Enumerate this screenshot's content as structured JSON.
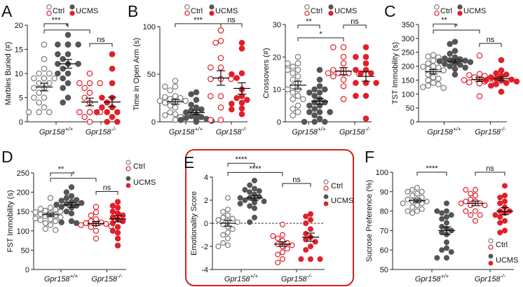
{
  "colors": {
    "wt": "#555555",
    "wt_open": "#7a7a7a",
    "ko": "#e0202a",
    "box": "#d42020"
  },
  "chart_data": [
    {
      "id": "A",
      "type": "scatter",
      "panel_label": "A",
      "ylabel": "Marbles Buried (#)",
      "ylim": [
        0,
        20
      ],
      "yticks": [
        0,
        5,
        10,
        15,
        20
      ],
      "xticks": [
        {
          "base": "Gpr158",
          "sup": "+/+"
        },
        {
          "base": "Gpr158",
          "sup": "-/-"
        }
      ],
      "legend": {
        "ctrl": "Ctrl",
        "ucms": "UCMS",
        "placement": "top"
      },
      "groups": [
        {
          "genotype": "Gpr158+/+",
          "condition": "Ctrl",
          "mean": 7.2,
          "sem": 0.8,
          "values": [
            16,
            13,
            11,
            10,
            10,
            9,
            9,
            9,
            9,
            8,
            8,
            7,
            7,
            6,
            5,
            5,
            4,
            3,
            2,
            2,
            2
          ]
        },
        {
          "genotype": "Gpr158+/+",
          "condition": "UCMS",
          "mean": 12.0,
          "sem": 0.9,
          "values": [
            18,
            16,
            16,
            16,
            16,
            16,
            16,
            14,
            14,
            13,
            12,
            12,
            12,
            11,
            10,
            10,
            9,
            8,
            7,
            5,
            4
          ]
        },
        {
          "genotype": "Gpr158-/-",
          "condition": "Ctrl",
          "mean": 4.1,
          "sem": 0.8,
          "values": [
            10,
            8,
            8,
            8,
            7,
            6,
            5,
            4,
            2,
            2,
            2,
            2,
            2,
            1,
            0
          ]
        },
        {
          "genotype": "Gpr158-/-",
          "condition": "UCMS",
          "mean": 4.1,
          "sem": 1.0,
          "values": [
            14,
            11,
            8,
            5,
            5,
            4,
            3,
            3,
            2,
            2,
            2,
            1,
            0,
            0
          ]
        }
      ],
      "significance": [
        {
          "from": 0,
          "to": 1,
          "label": "***",
          "y": 20.3
        },
        {
          "from": 0,
          "to": 2,
          "label": "*",
          "y": 19.0
        },
        {
          "from": 2,
          "to": 3,
          "label": "ns",
          "y": 16.2
        }
      ]
    },
    {
      "id": "B1",
      "type": "scatter",
      "panel_label": "B",
      "ylabel": "Time in Open Arm (s)",
      "ylim": [
        0,
        100
      ],
      "yticks": [
        0,
        50,
        100
      ],
      "xticks": [
        {
          "base": "Gpr158",
          "sup": "+/+"
        },
        {
          "base": "Gpr158",
          "sup": "-/-"
        }
      ],
      "legend": {
        "ctrl": "Ctrl",
        "ucms": "UCMS",
        "placement": "top"
      },
      "groups": [
        {
          "genotype": "Gpr158+/+",
          "condition": "Ctrl",
          "mean": 21,
          "sem": 2.5,
          "values": [
            43,
            37,
            37,
            33,
            27,
            26,
            25,
            24,
            22,
            22,
            21,
            20,
            17,
            15,
            10,
            8,
            7,
            7,
            5,
            2
          ]
        },
        {
          "genotype": "Gpr158+/+",
          "condition": "UCMS",
          "mean": 9.7,
          "sem": 2.2,
          "values": [
            31,
            29,
            23,
            18,
            15,
            13,
            12,
            10,
            8,
            6,
            5,
            4,
            3,
            3,
            2,
            2,
            1,
            1,
            0
          ]
        },
        {
          "genotype": "Gpr158-/-",
          "condition": "Ctrl",
          "mean": 46,
          "sem": 7.6,
          "values": [
            96,
            83,
            85,
            67,
            57,
            57,
            45,
            45,
            45,
            27,
            27,
            15,
            2,
            2
          ]
        },
        {
          "genotype": "Gpr158-/-",
          "condition": "UCMS",
          "mean": 35,
          "sem": 6,
          "values": [
            83,
            77,
            51,
            50,
            46,
            34,
            27,
            25,
            23,
            20,
            19,
            14,
            13,
            8
          ]
        }
      ],
      "significance": [
        {
          "from": 0,
          "to": 2,
          "label": "***",
          "y": 103
        },
        {
          "from": 2,
          "to": 3,
          "label": "ns",
          "y": 103
        }
      ]
    },
    {
      "id": "B2",
      "type": "scatter",
      "panel_label": "",
      "ylabel": "Crossovers (#)",
      "ylim": [
        0,
        30
      ],
      "yticks": [
        0,
        10,
        20,
        30
      ],
      "xticks": [
        {
          "base": "Gpr158",
          "sup": "+/+"
        },
        {
          "base": "Gpr158",
          "sup": "-/-"
        }
      ],
      "legend": {
        "ctrl": "Ctrl",
        "ucms": "UCMS",
        "placement": "top"
      },
      "groups": [
        {
          "genotype": "Gpr158+/+",
          "condition": "Ctrl",
          "mean": 11.3,
          "sem": 1.2,
          "values": [
            20,
            18,
            18,
            17,
            16,
            16,
            15,
            14,
            13,
            12,
            11,
            10,
            10,
            9,
            8,
            7,
            7,
            5,
            4,
            3,
            2
          ]
        },
        {
          "genotype": "Gpr158+/+",
          "condition": "UCMS",
          "mean": 6.3,
          "sem": 0.9,
          "values": [
            16,
            13,
            11,
            10,
            10,
            9,
            9,
            8,
            7,
            6,
            6,
            5,
            5,
            4,
            3,
            3,
            3,
            2,
            1,
            0,
            0,
            0
          ]
        },
        {
          "genotype": "Gpr158-/-",
          "condition": "Ctrl",
          "mean": 15.6,
          "sem": 1.1,
          "values": [
            23,
            23,
            20,
            18,
            16,
            16,
            15,
            15,
            15,
            15,
            15,
            14,
            13,
            11,
            7
          ]
        },
        {
          "genotype": "Gpr158-/-",
          "condition": "UCMS",
          "mean": 14.0,
          "sem": 1.5,
          "values": [
            23,
            20,
            20,
            18,
            16,
            16,
            15,
            15,
            12,
            12,
            12,
            12,
            8,
            8,
            1
          ]
        }
      ],
      "significance": [
        {
          "from": 0,
          "to": 1,
          "label": "**",
          "y": 29.8
        },
        {
          "from": 2,
          "to": 3,
          "label": "ns",
          "y": 29.8
        },
        {
          "from": 0,
          "to": 2,
          "label": "*",
          "y": 25.9
        }
      ]
    },
    {
      "id": "C",
      "type": "scatter",
      "panel_label": "C",
      "ylabel": "TST Immobility (s)",
      "ylim": [
        0,
        350
      ],
      "yticks": [
        0,
        50,
        100,
        150,
        200,
        250,
        300,
        350
      ],
      "xticks": [
        {
          "base": "Gpr158",
          "sup": "+/+"
        },
        {
          "base": "Gpr158",
          "sup": "-/-"
        }
      ],
      "legend": {
        "ctrl": "Ctrl",
        "ucms": "UCMS",
        "placement": "top"
      },
      "groups": [
        {
          "genotype": "Gpr158+/+",
          "condition": "Ctrl",
          "mean": 180,
          "sem": 8,
          "values": [
            240,
            235,
            232,
            220,
            210,
            200,
            198,
            195,
            190,
            185,
            180,
            170,
            160,
            155,
            150,
            140,
            135,
            130,
            125,
            122
          ]
        },
        {
          "genotype": "Gpr158+/+",
          "condition": "UCMS",
          "mean": 218,
          "sem": 6,
          "values": [
            288,
            280,
            255,
            245,
            232,
            228,
            225,
            222,
            220,
            218,
            215,
            212,
            210,
            208,
            205,
            200,
            195,
            190,
            170
          ]
        },
        {
          "genotype": "Gpr158-/-",
          "condition": "Ctrl",
          "mean": 152,
          "sem": 7,
          "values": [
            238,
            172,
            168,
            165,
            160,
            155,
            152,
            150,
            148,
            145,
            142,
            140,
            138,
            92
          ]
        },
        {
          "genotype": "Gpr158-/-",
          "condition": "UCMS",
          "mean": 155,
          "sem": 7,
          "values": [
            222,
            185,
            175,
            170,
            165,
            160,
            155,
            152,
            150,
            148,
            145,
            140,
            135,
            130,
            108
          ]
        }
      ],
      "significance": [
        {
          "from": 0,
          "to": 1,
          "label": "**",
          "y": 352
        },
        {
          "from": 0,
          "to": 2,
          "label": "*",
          "y": 330
        },
        {
          "from": 2,
          "to": 3,
          "label": "ns",
          "y": 282
        }
      ]
    },
    {
      "id": "D",
      "type": "scatter",
      "panel_label": "D",
      "ylabel": "FST Immobility (s)",
      "ylim": [
        0,
        250
      ],
      "yticks": [
        0,
        50,
        100,
        150,
        200,
        250
      ],
      "xticks": [
        {
          "base": "Gpr158",
          "sup": "+/+"
        },
        {
          "base": "Gpr158",
          "sup": "-/-"
        }
      ],
      "legend": {
        "ctrl": "Ctrl",
        "ucms": "UCMS",
        "placement": "right"
      },
      "groups": [
        {
          "genotype": "Gpr158+/+",
          "condition": "Ctrl",
          "mean": 142,
          "sem": 4,
          "values": [
            185,
            160,
            157,
            155,
            152,
            150,
            148,
            145,
            143,
            140,
            138,
            135,
            132,
            130,
            128,
            125,
            120,
            115,
            105,
            102
          ]
        },
        {
          "genotype": "Gpr158+/+",
          "condition": "UCMS",
          "mean": 167,
          "sem": 6,
          "values": [
            213,
            200,
            190,
            185,
            180,
            178,
            175,
            172,
            170,
            168,
            165,
            162,
            160,
            150,
            145,
            125,
            122,
            120,
            120
          ]
        },
        {
          "genotype": "Gpr158-/-",
          "condition": "Ctrl",
          "mean": 119,
          "sem": 5,
          "values": [
            162,
            148,
            140,
            130,
            125,
            122,
            120,
            118,
            118,
            115,
            112,
            110,
            100,
            80
          ]
        },
        {
          "genotype": "Gpr158-/-",
          "condition": "UCMS",
          "mean": 131,
          "sem": 8,
          "values": [
            175,
            165,
            160,
            150,
            145,
            140,
            135,
            130,
            125,
            120,
            110,
            100,
            95,
            80,
            62
          ]
        }
      ],
      "significance": [
        {
          "from": 0,
          "to": 1,
          "label": "**",
          "y": 250
        },
        {
          "from": 0,
          "to": 2,
          "label": "*",
          "y": 236
        },
        {
          "from": 2,
          "to": 3,
          "label": "ns",
          "y": 202
        }
      ]
    },
    {
      "id": "E",
      "type": "scatter",
      "panel_label": "E",
      "ylabel": "Emotionality Score",
      "ylim": [
        -4,
        4
      ],
      "yticks": [
        -4,
        -2,
        0,
        2,
        4
      ],
      "reference_line": 0,
      "xticks": [
        {
          "base": "Gpr158",
          "sup": "+/+"
        },
        {
          "base": "Gpr158",
          "sup": "-/-"
        }
      ],
      "legend": {
        "ctrl": "Ctrl",
        "ucms": "UCMS",
        "placement": "right"
      },
      "groups": [
        {
          "genotype": "Gpr158+/+",
          "condition": "Ctrl",
          "mean": 0.0,
          "sem": 0.25,
          "values": [
            2.2,
            1.2,
            1.0,
            0.7,
            0.5,
            0.3,
            0.2,
            0.1,
            0.4,
            -0.1,
            -0.3,
            -0.5,
            -0.8,
            -1.0,
            -1.3,
            -1.7,
            -1.9,
            -2.0
          ]
        },
        {
          "genotype": "Gpr158+/+",
          "condition": "UCMS",
          "mean": 2.2,
          "sem": 0.2,
          "values": [
            3.7,
            3.3,
            3.0,
            2.9,
            2.8,
            2.7,
            2.5,
            2.3,
            2.2,
            2.2,
            2.0,
            2.0,
            1.9,
            1.8,
            1.7,
            1.5,
            1.3,
            0.5,
            0.1
          ]
        },
        {
          "genotype": "Gpr158-/-",
          "condition": "Ctrl",
          "mean": -1.8,
          "sem": 0.2,
          "values": [
            -0.1,
            -1.0,
            -1.1,
            -1.3,
            -1.5,
            -1.7,
            -1.8,
            -1.9,
            -2.0,
            -2.2,
            -2.5,
            -2.7,
            -3.1,
            -3.4
          ]
        },
        {
          "genotype": "Gpr158-/-",
          "condition": "UCMS",
          "mean": -1.2,
          "sem": 0.35,
          "values": [
            0.8,
            0.6,
            0.3,
            0.0,
            -0.5,
            -0.9,
            -1.2,
            -1.4,
            -1.6,
            -2.0,
            -2.3,
            -3.1,
            -3.1,
            -3.1
          ]
        }
      ],
      "significance": [
        {
          "from": 0,
          "to": 1,
          "label": "****",
          "y": 5.2
        },
        {
          "from": 0,
          "to": 2,
          "label": "****",
          "y": 4.4
        },
        {
          "from": 2,
          "to": 3,
          "label": "ns",
          "y": 3.45
        }
      ]
    },
    {
      "id": "F",
      "type": "scatter",
      "panel_label": "F",
      "ylabel": "Sucrose Preference (%)",
      "ylim": [
        50,
        100
      ],
      "yticks": [
        50,
        60,
        70,
        80,
        90,
        100
      ],
      "xticks": [
        {
          "base": "Gpr158",
          "sup": "+/+"
        },
        {
          "base": "Gpr158",
          "sup": "-/-"
        }
      ],
      "legend": {
        "ctrl": "Ctrl",
        "ucms": "UCMS",
        "placement": "bottom-right"
      },
      "groups": [
        {
          "genotype": "Gpr158+/+",
          "condition": "Ctrl",
          "mean": 85.4,
          "sem": 0.8,
          "values": [
            92,
            91,
            90,
            90,
            89,
            88,
            87,
            86,
            86,
            85,
            85,
            84,
            84,
            83,
            82,
            81,
            80,
            80,
            79
          ]
        },
        {
          "genotype": "Gpr158+/+",
          "condition": "UCMS",
          "mean": 70,
          "sem": 1.9,
          "values": [
            84,
            80,
            80,
            79,
            78,
            77,
            76,
            74,
            72,
            71,
            70,
            69,
            68,
            64,
            61,
            60,
            59,
            56,
            56
          ]
        },
        {
          "genotype": "Gpr158-/-",
          "condition": "Ctrl",
          "mean": 84,
          "sem": 1.2,
          "values": [
            91,
            91,
            89,
            88,
            86,
            85,
            85,
            84,
            84,
            83,
            83,
            80,
            80,
            78,
            78,
            75
          ]
        },
        {
          "genotype": "Gpr158-/-",
          "condition": "UCMS",
          "mean": 80,
          "sem": 1.8,
          "values": [
            93,
            88,
            87,
            85,
            84,
            82,
            80,
            80,
            79,
            78,
            77,
            75,
            74,
            70,
            69
          ]
        }
      ],
      "significance": [
        {
          "from": 0,
          "to": 1,
          "label": "****",
          "y": 100
        },
        {
          "from": 2,
          "to": 3,
          "label": "ns",
          "y": 100
        }
      ]
    }
  ]
}
